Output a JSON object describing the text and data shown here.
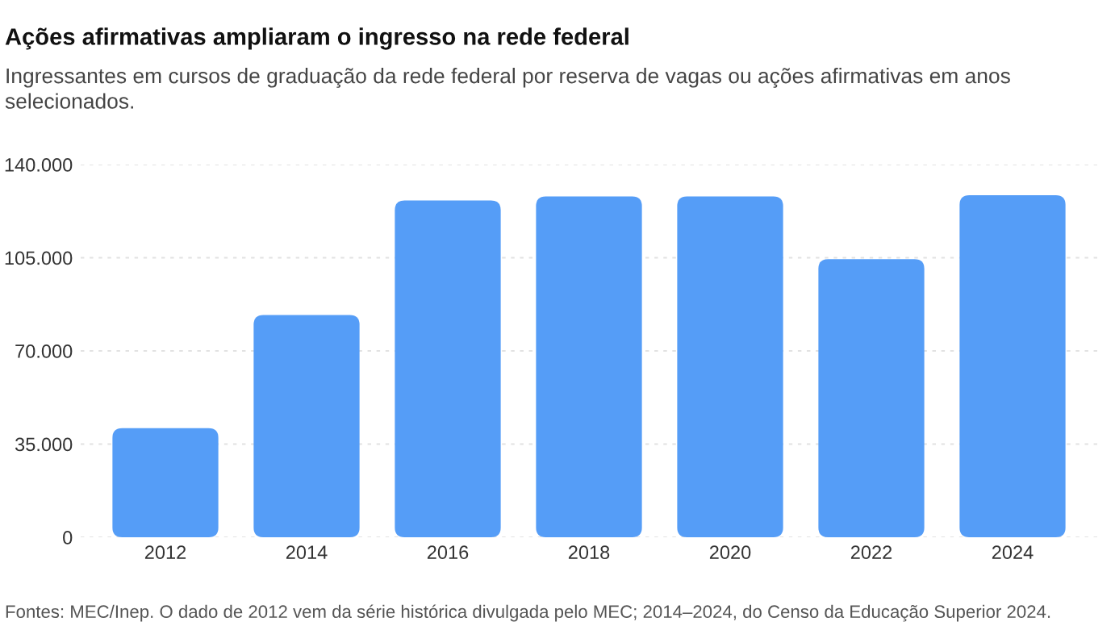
{
  "chart_data": {
    "type": "bar",
    "title": "Ações afirmativas ampliaram o ingresso na rede federal",
    "subtitle": "Ingressantes em cursos de graduação da rede federal por reserva de vagas ou ações afirmativas em anos selecionados.",
    "categories": [
      "2012",
      "2014",
      "2016",
      "2018",
      "2020",
      "2022",
      "2024"
    ],
    "values": [
      41000,
      83500,
      126500,
      128000,
      128000,
      104500,
      128500
    ],
    "color": "#559df7",
    "ylim": [
      0,
      140000
    ],
    "yticks": [
      0,
      {
        "value": 35000,
        "label": "35.000"
      },
      {
        "value": 70000,
        "label": "70.000"
      },
      {
        "value": 105000,
        "label": "105.000"
      },
      {
        "value": 140000,
        "label": "140.000"
      }
    ],
    "grid": "y",
    "annotations": [
      "Fontes: MEC/Inep. O dado de 2012 vem da série histórica divulgada pelo MEC; 2014–2024, do Censo da Educação Superior 2024."
    ]
  }
}
